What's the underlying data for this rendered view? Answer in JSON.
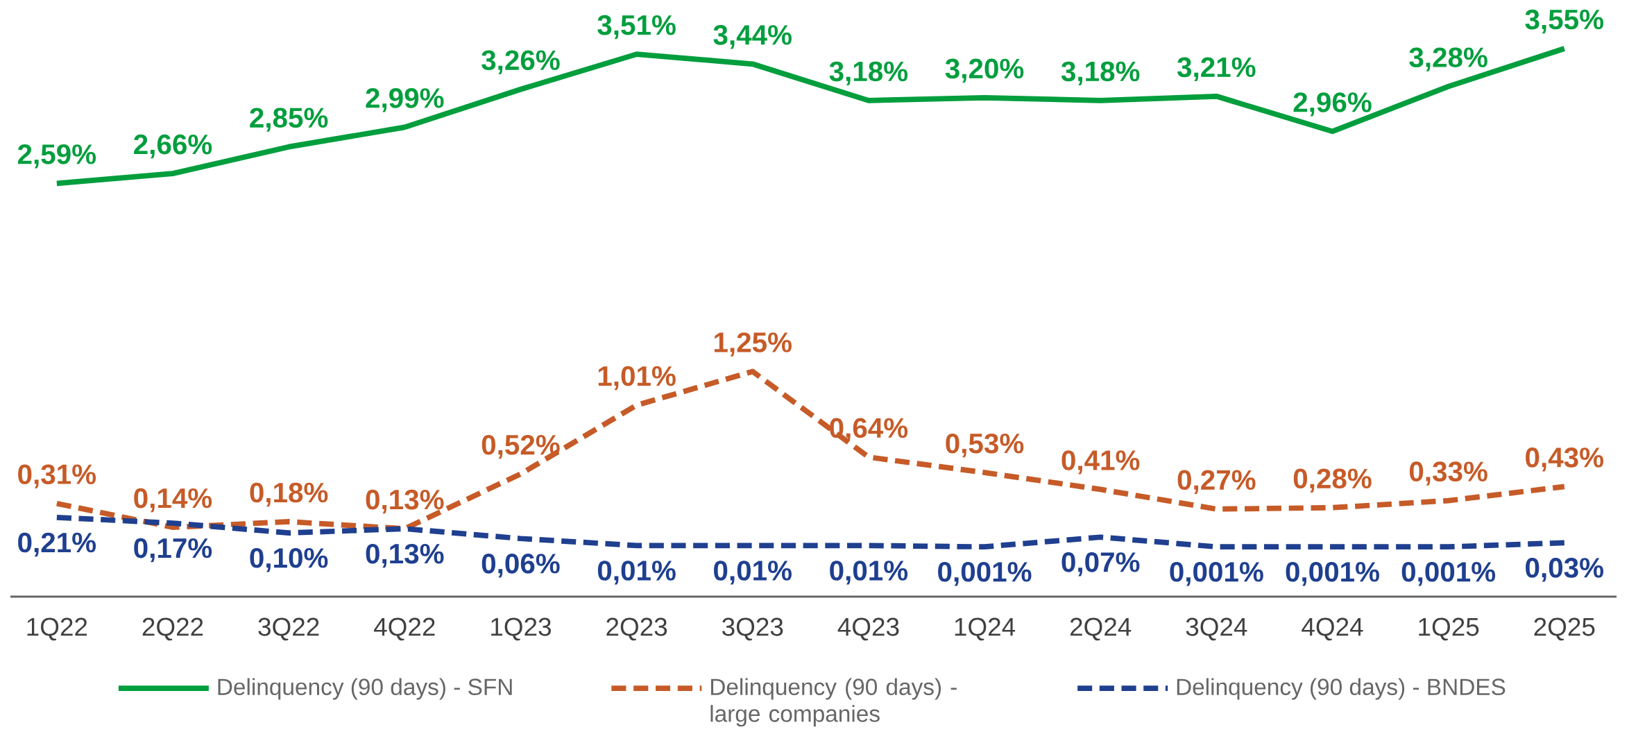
{
  "chart_data": {
    "type": "line",
    "categories": [
      "1Q22",
      "2Q22",
      "3Q22",
      "4Q22",
      "1Q23",
      "2Q23",
      "3Q23",
      "4Q23",
      "1Q24",
      "2Q24",
      "3Q24",
      "4Q24",
      "1Q25",
      "2Q25"
    ],
    "series": [
      {
        "name": "Delinquency (90 days) - SFN",
        "color": "#009e3d",
        "line_style": "solid",
        "values": [
          2.59,
          2.66,
          2.85,
          2.99,
          3.26,
          3.51,
          3.44,
          3.18,
          3.2,
          3.18,
          3.21,
          2.96,
          3.28,
          3.55
        ],
        "value_labels": [
          "2,59%",
          "2,66%",
          "2,85%",
          "2,99%",
          "3,26%",
          "3,51%",
          "3,44%",
          "3,18%",
          "3,20%",
          "3,18%",
          "3,21%",
          "2,96%",
          "3,28%",
          "3,55%"
        ]
      },
      {
        "name": "Delinquency (90 days) - large companies",
        "color": "#c65b28",
        "line_style": "dashed",
        "values": [
          0.31,
          0.14,
          0.18,
          0.13,
          0.52,
          1.01,
          1.25,
          0.64,
          0.53,
          0.41,
          0.27,
          0.28,
          0.33,
          0.43
        ],
        "value_labels": [
          "0,31%",
          "0,14%",
          "0,18%",
          "0,13%",
          "0,52%",
          "1,01%",
          "1,25%",
          "0,64%",
          "0,53%",
          "0,41%",
          "0,27%",
          "0,28%",
          "0,33%",
          "0,43%"
        ]
      },
      {
        "name": "Delinquency (90 days) - BNDES",
        "color": "#1f3f8f",
        "line_style": "dashed",
        "values": [
          0.21,
          0.17,
          0.1,
          0.13,
          0.06,
          0.01,
          0.01,
          0.01,
          0.001,
          0.07,
          0.001,
          0.001,
          0.001,
          0.03
        ],
        "value_labels": [
          "0,21%",
          "0,17%",
          "0,10%",
          "0,13%",
          "0,06%",
          "0,01%",
          "0,01%",
          "0,01%",
          "0,001%",
          "0,07%",
          "0,001%",
          "0,001%",
          "0,001%",
          "0,03%"
        ]
      }
    ],
    "tick_labels": "x",
    "grid": false,
    "marker": "none",
    "legend": "bottom"
  }
}
